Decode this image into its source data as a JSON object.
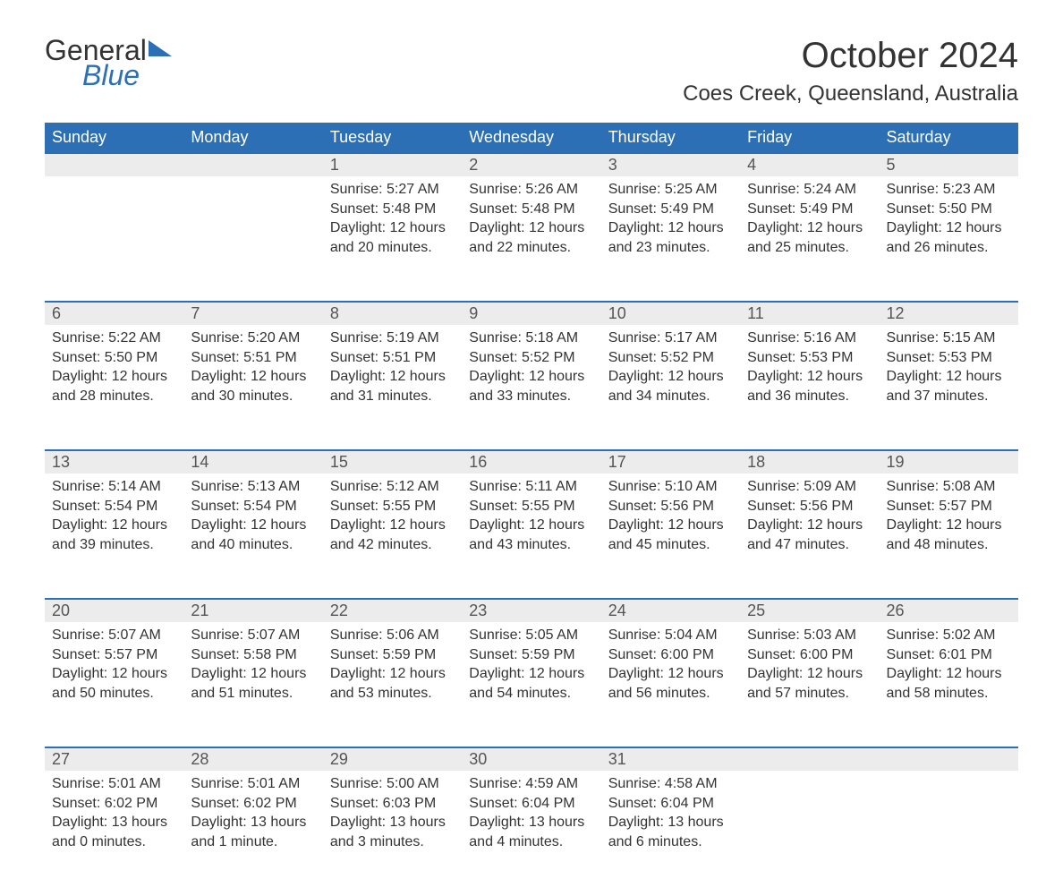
{
  "logo": {
    "word1": "General",
    "word2": "Blue"
  },
  "title": "October 2024",
  "location": "Coes Creek, Queensland, Australia",
  "header_bg": "#2d6fb5",
  "header_text_color": "#ffffff",
  "daynum_bg": "#ececec",
  "daynum_border": "#2d6fb5",
  "body_text_color": "#333333",
  "font_size_title": 40,
  "font_size_location": 24,
  "font_size_header": 18,
  "font_size_daynum": 18,
  "font_size_body": 16,
  "columns": [
    "Sunday",
    "Monday",
    "Tuesday",
    "Wednesday",
    "Thursday",
    "Friday",
    "Saturday"
  ],
  "weeks": [
    [
      null,
      null,
      {
        "n": "1",
        "sunrise": "5:27 AM",
        "sunset": "5:48 PM",
        "daylight": "12 hours and 20 minutes."
      },
      {
        "n": "2",
        "sunrise": "5:26 AM",
        "sunset": "5:48 PM",
        "daylight": "12 hours and 22 minutes."
      },
      {
        "n": "3",
        "sunrise": "5:25 AM",
        "sunset": "5:49 PM",
        "daylight": "12 hours and 23 minutes."
      },
      {
        "n": "4",
        "sunrise": "5:24 AM",
        "sunset": "5:49 PM",
        "daylight": "12 hours and 25 minutes."
      },
      {
        "n": "5",
        "sunrise": "5:23 AM",
        "sunset": "5:50 PM",
        "daylight": "12 hours and 26 minutes."
      }
    ],
    [
      {
        "n": "6",
        "sunrise": "5:22 AM",
        "sunset": "5:50 PM",
        "daylight": "12 hours and 28 minutes."
      },
      {
        "n": "7",
        "sunrise": "5:20 AM",
        "sunset": "5:51 PM",
        "daylight": "12 hours and 30 minutes."
      },
      {
        "n": "8",
        "sunrise": "5:19 AM",
        "sunset": "5:51 PM",
        "daylight": "12 hours and 31 minutes."
      },
      {
        "n": "9",
        "sunrise": "5:18 AM",
        "sunset": "5:52 PM",
        "daylight": "12 hours and 33 minutes."
      },
      {
        "n": "10",
        "sunrise": "5:17 AM",
        "sunset": "5:52 PM",
        "daylight": "12 hours and 34 minutes."
      },
      {
        "n": "11",
        "sunrise": "5:16 AM",
        "sunset": "5:53 PM",
        "daylight": "12 hours and 36 minutes."
      },
      {
        "n": "12",
        "sunrise": "5:15 AM",
        "sunset": "5:53 PM",
        "daylight": "12 hours and 37 minutes."
      }
    ],
    [
      {
        "n": "13",
        "sunrise": "5:14 AM",
        "sunset": "5:54 PM",
        "daylight": "12 hours and 39 minutes."
      },
      {
        "n": "14",
        "sunrise": "5:13 AM",
        "sunset": "5:54 PM",
        "daylight": "12 hours and 40 minutes."
      },
      {
        "n": "15",
        "sunrise": "5:12 AM",
        "sunset": "5:55 PM",
        "daylight": "12 hours and 42 minutes."
      },
      {
        "n": "16",
        "sunrise": "5:11 AM",
        "sunset": "5:55 PM",
        "daylight": "12 hours and 43 minutes."
      },
      {
        "n": "17",
        "sunrise": "5:10 AM",
        "sunset": "5:56 PM",
        "daylight": "12 hours and 45 minutes."
      },
      {
        "n": "18",
        "sunrise": "5:09 AM",
        "sunset": "5:56 PM",
        "daylight": "12 hours and 47 minutes."
      },
      {
        "n": "19",
        "sunrise": "5:08 AM",
        "sunset": "5:57 PM",
        "daylight": "12 hours and 48 minutes."
      }
    ],
    [
      {
        "n": "20",
        "sunrise": "5:07 AM",
        "sunset": "5:57 PM",
        "daylight": "12 hours and 50 minutes."
      },
      {
        "n": "21",
        "sunrise": "5:07 AM",
        "sunset": "5:58 PM",
        "daylight": "12 hours and 51 minutes."
      },
      {
        "n": "22",
        "sunrise": "5:06 AM",
        "sunset": "5:59 PM",
        "daylight": "12 hours and 53 minutes."
      },
      {
        "n": "23",
        "sunrise": "5:05 AM",
        "sunset": "5:59 PM",
        "daylight": "12 hours and 54 minutes."
      },
      {
        "n": "24",
        "sunrise": "5:04 AM",
        "sunset": "6:00 PM",
        "daylight": "12 hours and 56 minutes."
      },
      {
        "n": "25",
        "sunrise": "5:03 AM",
        "sunset": "6:00 PM",
        "daylight": "12 hours and 57 minutes."
      },
      {
        "n": "26",
        "sunrise": "5:02 AM",
        "sunset": "6:01 PM",
        "daylight": "12 hours and 58 minutes."
      }
    ],
    [
      {
        "n": "27",
        "sunrise": "5:01 AM",
        "sunset": "6:02 PM",
        "daylight": "13 hours and 0 minutes."
      },
      {
        "n": "28",
        "sunrise": "5:01 AM",
        "sunset": "6:02 PM",
        "daylight": "13 hours and 1 minute."
      },
      {
        "n": "29",
        "sunrise": "5:00 AM",
        "sunset": "6:03 PM",
        "daylight": "13 hours and 3 minutes."
      },
      {
        "n": "30",
        "sunrise": "4:59 AM",
        "sunset": "6:04 PM",
        "daylight": "13 hours and 4 minutes."
      },
      {
        "n": "31",
        "sunrise": "4:58 AM",
        "sunset": "6:04 PM",
        "daylight": "13 hours and 6 minutes."
      },
      null,
      null
    ]
  ],
  "labels": {
    "sunrise": "Sunrise:",
    "sunset": "Sunset:",
    "daylight": "Daylight:"
  }
}
